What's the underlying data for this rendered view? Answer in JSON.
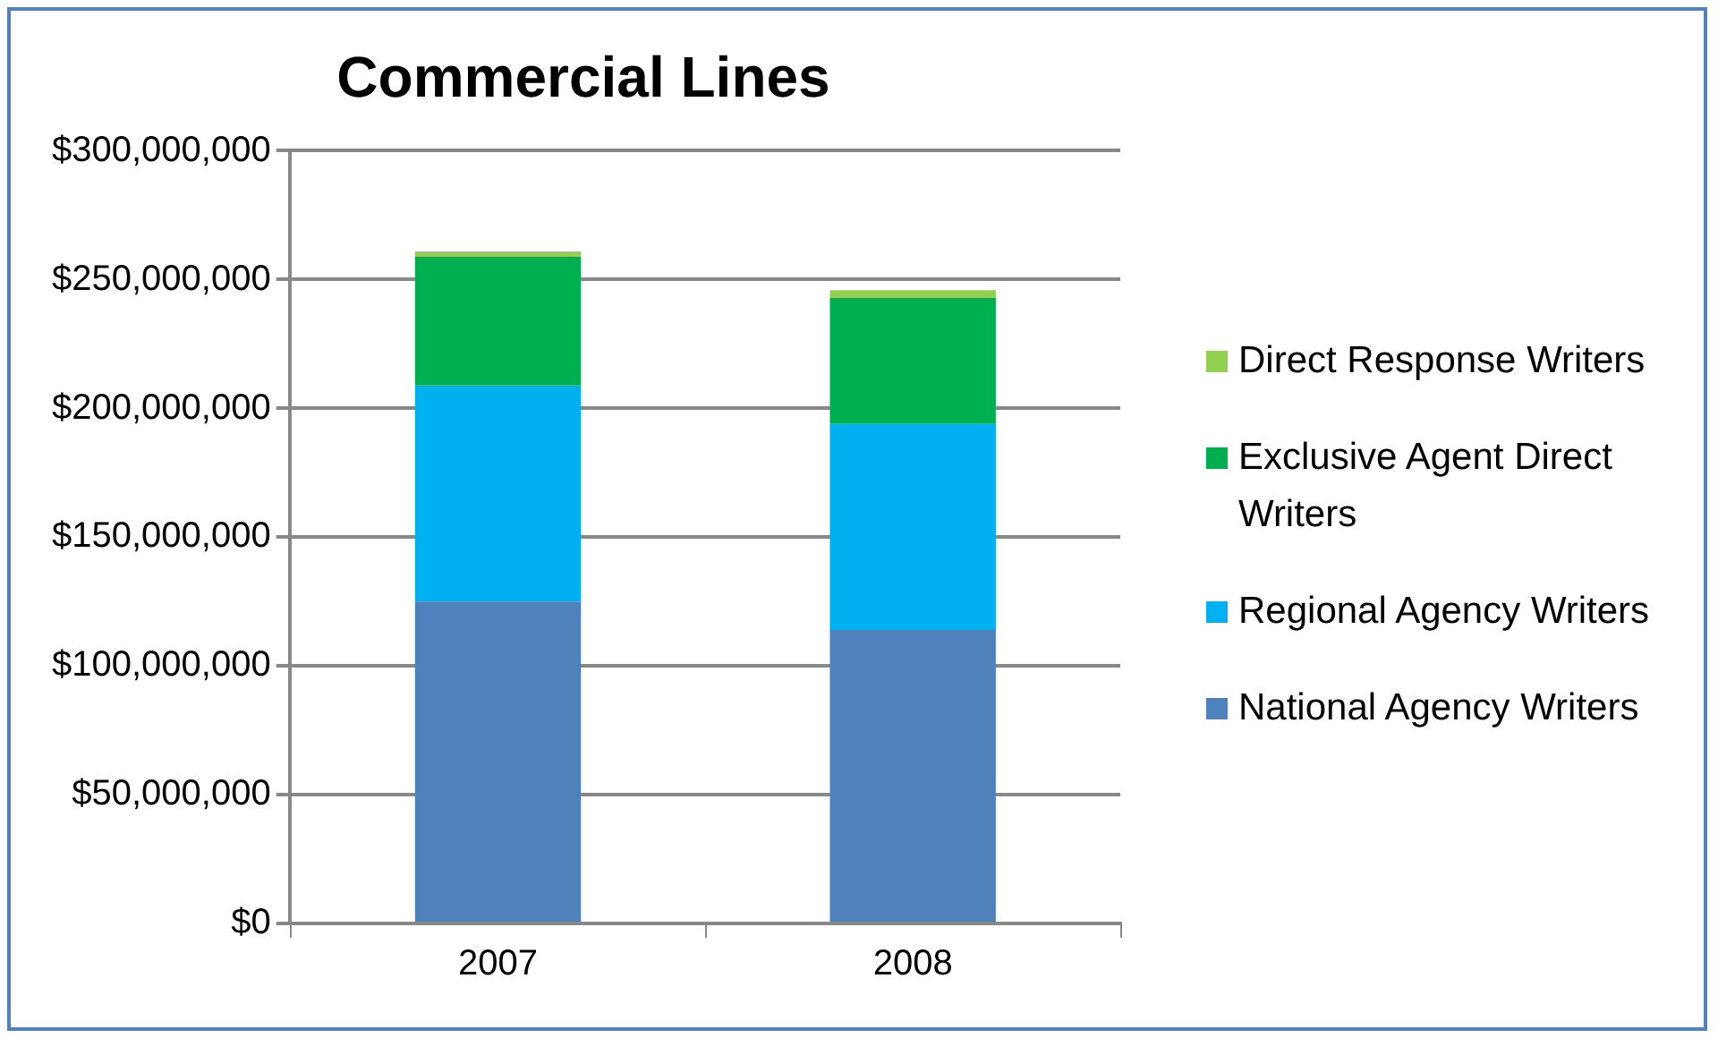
{
  "chart_data": {
    "type": "bar",
    "stacked": true,
    "title": "Commercial Lines",
    "categories": [
      "2007",
      "2008"
    ],
    "series": [
      {
        "name": "National Agency Writers",
        "color": "#4f81bd",
        "values": [
          125000000,
          114000000
        ]
      },
      {
        "name": "Regional Agency Writers",
        "color": "#00b0f0",
        "values": [
          84000000,
          80000000
        ]
      },
      {
        "name": "Exclusive Agent Direct Writers",
        "color": "#00b050",
        "values": [
          50000000,
          49000000
        ]
      },
      {
        "name": "Direct Response Writers",
        "color": "#92d050",
        "values": [
          2000000,
          3000000
        ]
      }
    ],
    "ylim": [
      0,
      300000000
    ],
    "yticks": [
      {
        "value": 0,
        "label": "$0"
      },
      {
        "value": 50000000,
        "label": "$50,000,000"
      },
      {
        "value": 100000000,
        "label": "$100,000,000"
      },
      {
        "value": 150000000,
        "label": "$150,000,000"
      },
      {
        "value": 200000000,
        "label": "$200,000,000"
      },
      {
        "value": 250000000,
        "label": "$250,000,000"
      },
      {
        "value": 300000000,
        "label": "$300,000,000"
      }
    ],
    "grid": "y",
    "legend": "right"
  }
}
